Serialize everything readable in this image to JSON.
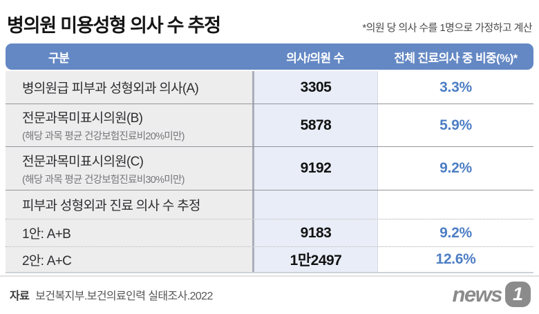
{
  "title": "병의원 미용성형 의사 수 추정",
  "note": "*의원 당 의사 수를 1명으로 가정하고 계산",
  "table": {
    "headers": [
      "구분",
      "의사/의원 수",
      "전체 진료의사 중 비중(%)*"
    ],
    "rows": [
      {
        "label": "병의원급 피부과 성형외과 의사(A)",
        "sub": "",
        "count": "3305",
        "share": "3.3%"
      },
      {
        "label": "전문과목미표시의원(B)",
        "sub": "(해당 과목 평균 건강보험진료비20%미만)",
        "count": "5878",
        "share": "5.9%"
      },
      {
        "label": "전문과목미표시의원(C)",
        "sub": "(해당 과목 평균 건강보험진료비30%미만)",
        "count": "9192",
        "share": "9.2%"
      },
      {
        "label": "피부과 성형외과 진료 의사 수 추정",
        "sub": "",
        "count": "",
        "share": ""
      },
      {
        "label": "1안: A+B",
        "sub": "",
        "count": "9183",
        "share": "9.2%"
      },
      {
        "label": "2안: A+C",
        "sub": "",
        "count": "1만2497",
        "share": "12.6%"
      }
    ]
  },
  "footer": {
    "source_label": "자료",
    "source_text": "보건복지부.보건의료인력 실태조사.2022",
    "logo_text": "news",
    "logo_badge": "1"
  },
  "colors": {
    "header_bg": "#6488c4",
    "label_col_bg": "#ededee",
    "count_col_bg": "#e8edf7",
    "accent_blue": "#4d7ec4",
    "logo_gray": "#8b8b8b"
  },
  "chart_data": {
    "type": "table",
    "title": "병의원 미용성형 의사 수 추정",
    "note": "*의원 당 의사 수를 1명으로 가정하고 계산",
    "columns": [
      "구분",
      "의사/의원 수",
      "전체 진료의사 중 비중(%)*"
    ],
    "rows": [
      {
        "category": "병의원급 피부과 성형외과 의사(A)",
        "count": 3305,
        "share_pct": 3.3
      },
      {
        "category": "전문과목미표시의원(B) (해당 과목 평균 건강보험진료비20%미만)",
        "count": 5878,
        "share_pct": 5.9
      },
      {
        "category": "전문과목미표시의원(C) (해당 과목 평균 건강보험진료비30%미만)",
        "count": 9192,
        "share_pct": 9.2
      },
      {
        "category": "피부과 성형외과 진료 의사 수 추정",
        "count": null,
        "share_pct": null
      },
      {
        "category": "1안: A+B",
        "count": 9183,
        "share_pct": 9.2
      },
      {
        "category": "2안: A+C",
        "count": 12497,
        "share_pct": 12.6
      }
    ],
    "source": "보건복지부.보건의료인력 실태조사.2022"
  }
}
